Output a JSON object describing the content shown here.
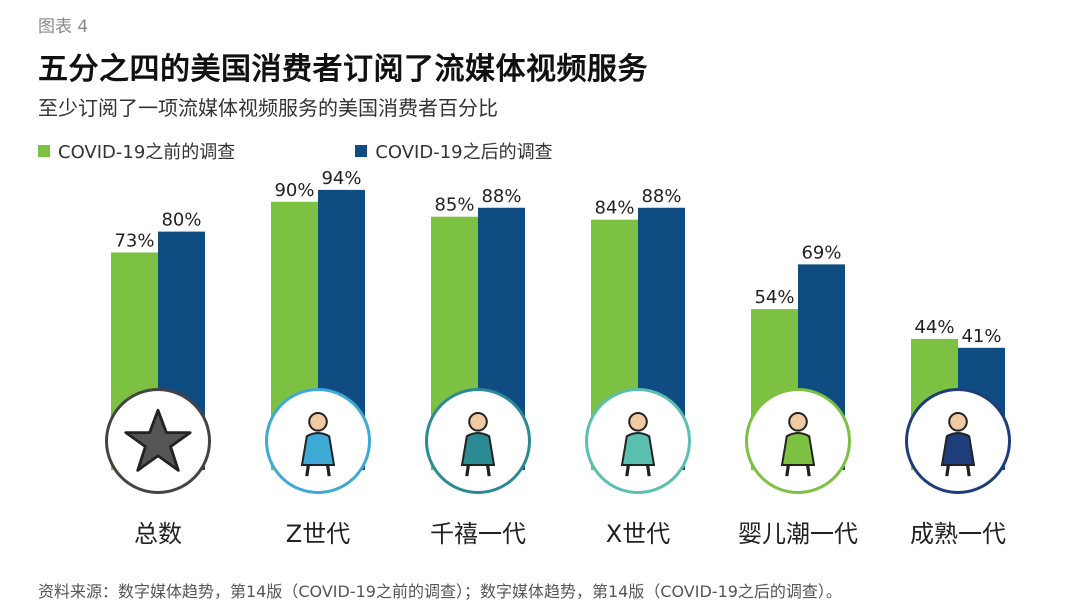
{
  "header": {
    "figure_label": "图表 4",
    "title": "五分之四的美国消费者订阅了流媒体视频服务",
    "subtitle": "至少订阅了一项流媒体视频服务的美国消费者百分比"
  },
  "colors": {
    "before": "#7DC142",
    "after": "#0F4C81"
  },
  "chart_data": {
    "type": "bar",
    "categories": [
      "总数",
      "Z世代",
      "千禧一代",
      "X世代",
      "婴儿潮一代",
      "成熟一代"
    ],
    "series": [
      {
        "name": "COVID-19之前的调查",
        "values": [
          73,
          90,
          85,
          84,
          54,
          44
        ],
        "labels": [
          "73%",
          "90%",
          "85%",
          "84%",
          "54%",
          "44%"
        ]
      },
      {
        "name": "COVID-19之后的调查",
        "values": [
          80,
          94,
          88,
          88,
          69,
          41
        ],
        "labels": [
          "80%",
          "94%",
          "88%",
          "88%",
          "69%",
          "41%"
        ]
      }
    ],
    "ylim": [
      0,
      100
    ],
    "legend_position": "top-left",
    "icons": [
      "star-icon",
      "gen-z-person-icon",
      "millennial-person-icon",
      "gen-x-person-icon",
      "boomer-person-icon",
      "silent-gen-person-icon"
    ],
    "icon_ring_colors": [
      "#444444",
      "#3FA9D6",
      "#2C8A95",
      "#5BBFB0",
      "#7DC142",
      "#1E3D7A"
    ]
  },
  "footer": {
    "source": "资料来源：数字媒体趋势，第14版（COVID-19之前的调查）；数字媒体趋势，第14版（COVID-19之后的调查）。"
  }
}
